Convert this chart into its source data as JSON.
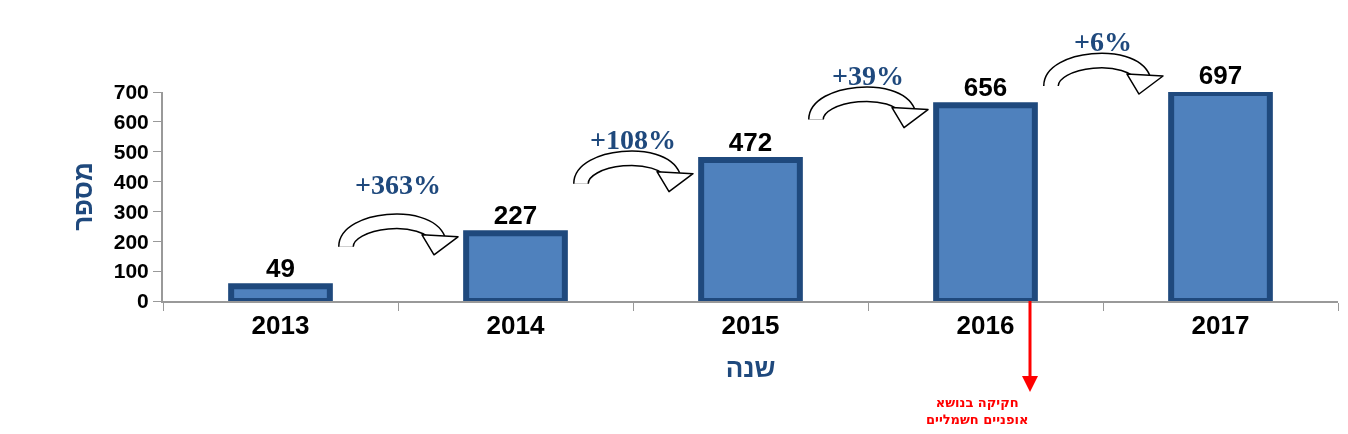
{
  "chart_data": {
    "type": "bar",
    "xlabel": "שנה",
    "ylabel": "מספר",
    "categories": [
      "2013",
      "2014",
      "2015",
      "2016",
      "2017"
    ],
    "values": [
      49,
      227,
      472,
      656,
      697
    ],
    "color": "#4f81bd",
    "ylim": [
      0,
      700
    ],
    "yticks": [
      0,
      100,
      200,
      300,
      400,
      500,
      600,
      700
    ],
    "grid": false,
    "legend": false,
    "data_labels": true,
    "annotations": [
      "+363%",
      "+108%",
      "+39%",
      "+6%",
      "חקיקה בנושא\nאופניים חשמליים"
    ]
  }
}
